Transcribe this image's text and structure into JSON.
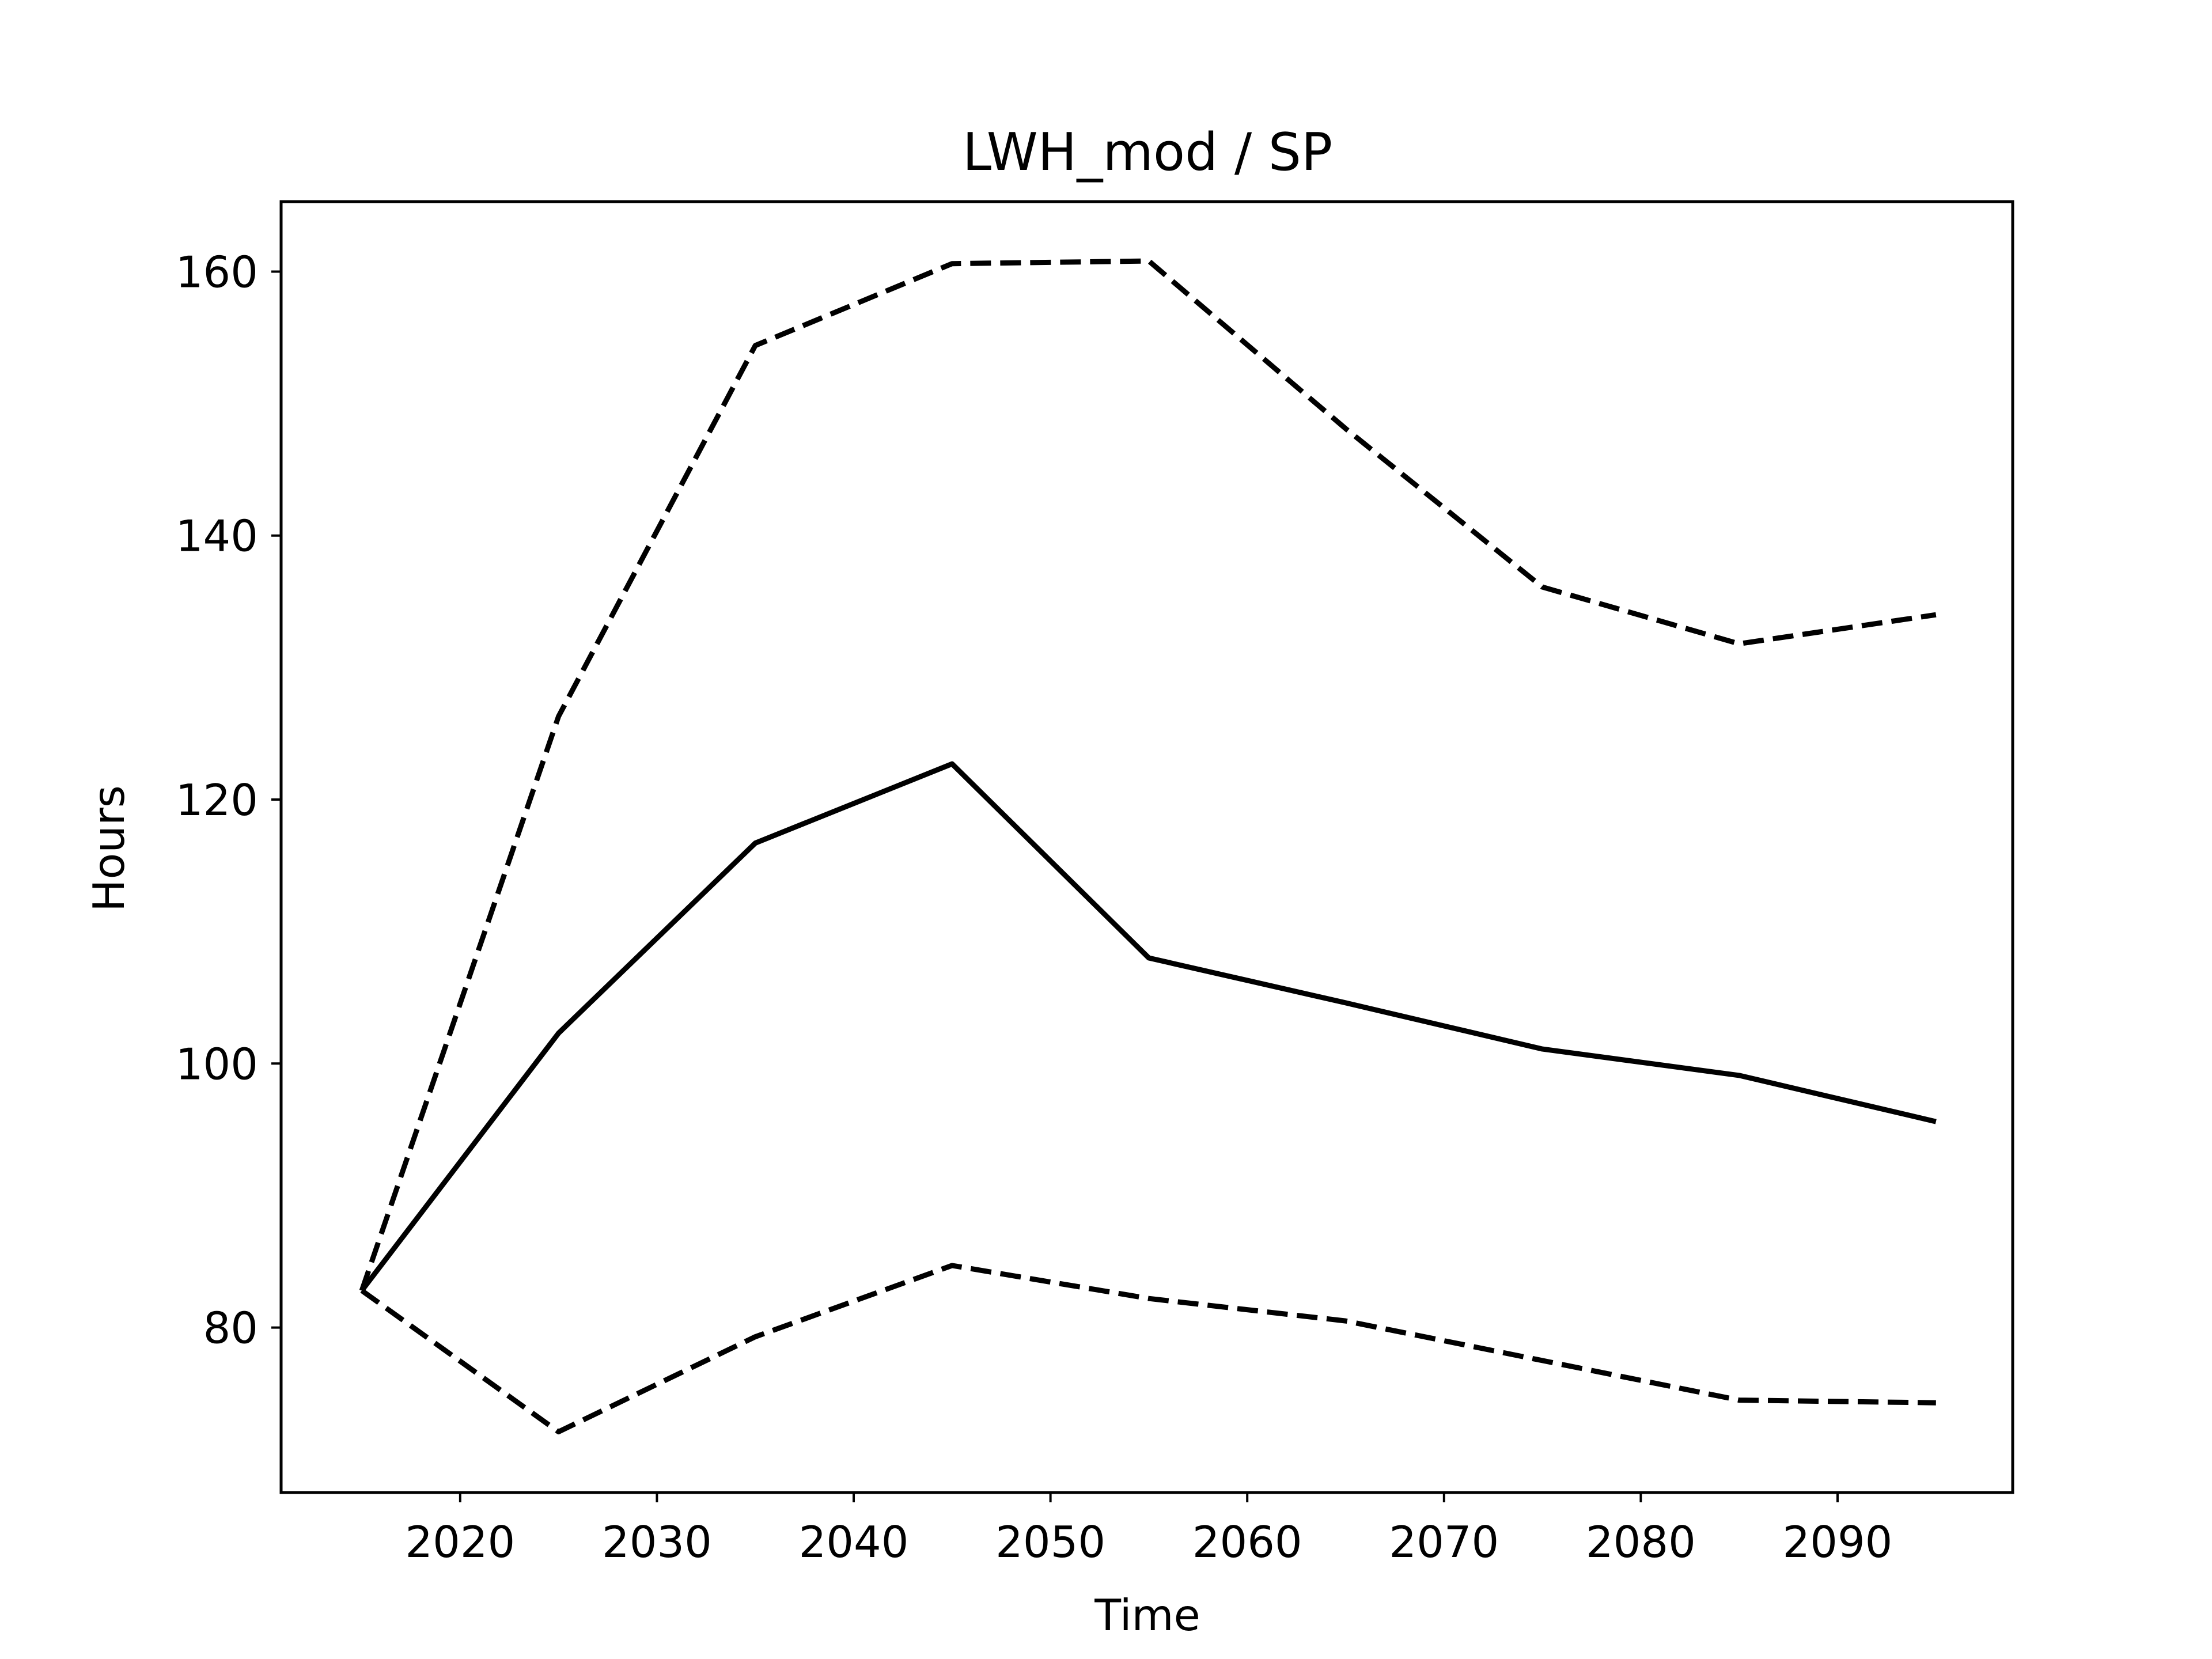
{
  "chart_data": {
    "type": "line",
    "title": "LWH_mod / SP",
    "xlabel": "Time",
    "ylabel": "Hours",
    "x": [
      2015,
      2025,
      2035,
      2045,
      2055,
      2065,
      2075,
      2085,
      2095
    ],
    "xlim": [
      2010.9,
      2098.9
    ],
    "ylim": [
      67.5,
      165.3
    ],
    "xticks": [
      2020,
      2030,
      2040,
      2050,
      2060,
      2070,
      2080,
      2090
    ],
    "yticks": [
      80,
      100,
      120,
      140,
      160
    ],
    "grid": false,
    "legend": false,
    "series": [
      {
        "id": "upper",
        "style": "dashed",
        "color": "#000000",
        "values": [
          82.8,
          126.3,
          154.4,
          160.6,
          160.8,
          148.1,
          136.1,
          131.8,
          134.0
        ]
      },
      {
        "id": "median",
        "style": "solid",
        "color": "#000000",
        "values": [
          82.8,
          102.3,
          116.7,
          122.7,
          108.0,
          104.6,
          101.1,
          99.1,
          95.6
        ]
      },
      {
        "id": "lower",
        "style": "dashed",
        "color": "#000000",
        "values": [
          82.8,
          72.1,
          79.3,
          84.7,
          82.2,
          80.5,
          77.5,
          74.5,
          74.3
        ]
      }
    ]
  }
}
